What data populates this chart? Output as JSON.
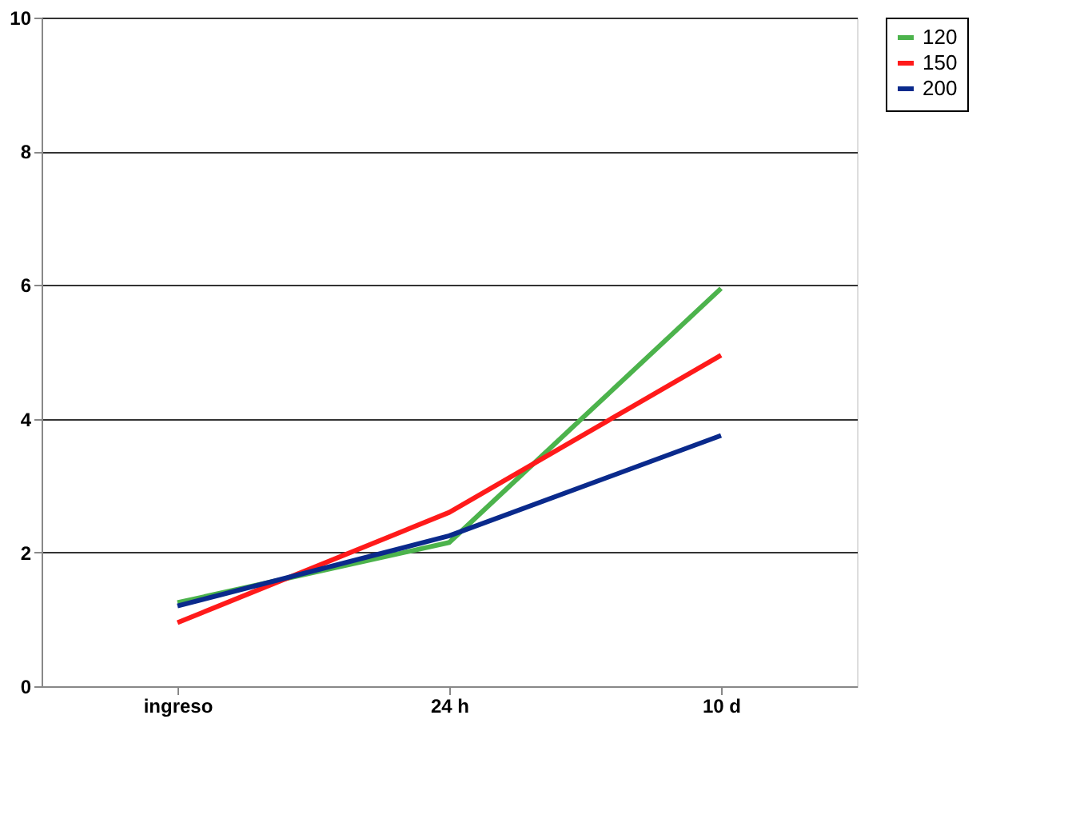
{
  "chart_data": {
    "type": "line",
    "categories": [
      "ingreso",
      "24 h",
      "10 d"
    ],
    "series": [
      {
        "name": "120",
        "color": "#4cb34c",
        "values": [
          1.25,
          2.15,
          5.95
        ]
      },
      {
        "name": "150",
        "color": "#ff1a1a",
        "values": [
          0.95,
          2.6,
          4.95
        ]
      },
      {
        "name": "200",
        "color": "#0a2a8c",
        "values": [
          1.2,
          2.25,
          3.75
        ]
      }
    ],
    "ylim": [
      0,
      10
    ],
    "yticks": [
      0,
      2,
      4,
      6,
      8,
      10
    ],
    "grid": "y",
    "legend": "right",
    "marker": "none",
    "line_style": "solid"
  }
}
